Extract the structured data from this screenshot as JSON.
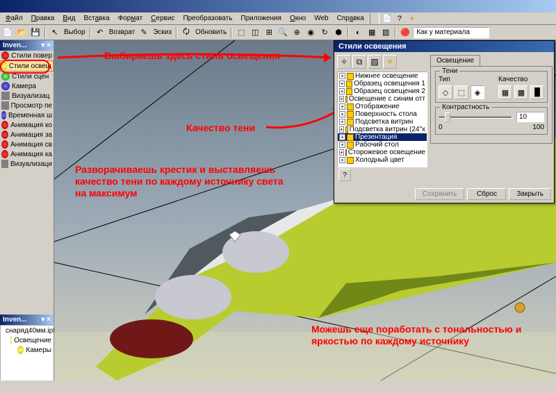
{
  "app": {
    "title": ""
  },
  "menus": [
    "Файл",
    "Правка",
    "Вид",
    "Вставка",
    "Формат",
    "Сервис",
    "Преобразовать",
    "Приложения",
    "Окно",
    "Web",
    "Справка"
  ],
  "toolbar2": {
    "select": "Выбор",
    "back": "Возврат",
    "zoom": "Эскиз",
    "refresh": "Обновить"
  },
  "material_box": "Как у материала",
  "sidebar": {
    "title": "Inven...",
    "items": [
      {
        "ico": "ico-red",
        "label": "Стили повер"
      },
      {
        "ico": "ico-yel",
        "label": "Стили освещ",
        "sel": true
      },
      {
        "ico": "ico-grn",
        "label": "Стили сцен"
      },
      {
        "ico": "ico-blu",
        "label": "Камера"
      },
      {
        "ico": "ico-gry",
        "label": "Визуализац"
      },
      {
        "ico": "ico-gry",
        "label": "Просмотр пе"
      },
      {
        "ico": "ico-blu",
        "label": "Временная ш"
      },
      {
        "ico": "ico-red",
        "label": "Анимация ко"
      },
      {
        "ico": "ico-red",
        "label": "Анимация за"
      },
      {
        "ico": "ico-red",
        "label": "Анимация св"
      },
      {
        "ico": "ico-red",
        "label": "Анимация ка"
      },
      {
        "ico": "ico-gry",
        "label": "Визуализаци"
      }
    ]
  },
  "browser": {
    "title": "Inven...",
    "items": [
      {
        "label": "снаряд40мм.ipt"
      },
      {
        "label": "Освещение"
      },
      {
        "label": "Камеры"
      }
    ]
  },
  "dialog": {
    "title": "Стили освещения",
    "tree": [
      "Нижнее освещение",
      "Образец освещения 1",
      "Образец освещения 2",
      "Освещение с синим отт",
      "Отображение",
      "Поверхность стола",
      "Подсветка витрин",
      "Подсветка витрин (24\"x",
      "Презентация",
      "Рабочий стол",
      "Сторожевое освещение",
      "Холодный цвет"
    ],
    "tree_selected": 8,
    "tab": "Освещение",
    "shadows_label": "Тени",
    "type_label": "Тип",
    "quality_label": "Качество",
    "contrast_label": "Контрастность",
    "contrast_value": "10",
    "scale_min": "0",
    "scale_max": "100",
    "buttons": {
      "save": "Сохранить",
      "reset": "Сброс",
      "close": "Закрыть"
    }
  },
  "annotations": {
    "a1": "Выбираешь здесь стиль освещения",
    "a2": "Качество тени",
    "a3": "Разворачиваешь крестик и выставляешь качество тени по каждому источнику света на максимум",
    "a4": "Можешь еще поработать с тональностью и яркостью по каждому источнику"
  },
  "colors": {
    "annot": "#ff0000",
    "titlebar_start": "#0a246a",
    "titlebar_end": "#a6caf0",
    "panel_bg": "#d4d0c8"
  }
}
